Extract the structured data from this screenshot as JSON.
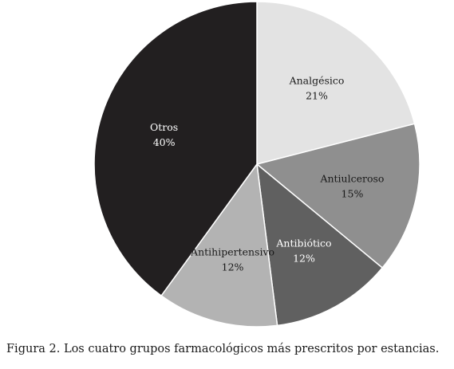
{
  "chart_data": {
    "type": "pie",
    "title": "",
    "caption": "Figura 2. Los cuatro grupos farmacológicos más prescritos por estancias.",
    "slices": [
      {
        "label": "Analgésico",
        "value": 21,
        "display": "21%",
        "color": "#e3e3e3",
        "text_color": "#1a1a1a"
      },
      {
        "label": "Antiulceroso",
        "value": 15,
        "display": "15%",
        "color": "#8f8f8f",
        "text_color": "#1a1a1a"
      },
      {
        "label": "Antibiótico",
        "value": 12,
        "display": "12%",
        "color": "#606060",
        "text_color": "#ffffff"
      },
      {
        "label": "Antihipertensivo",
        "value": 12,
        "display": "12%",
        "color": "#b3b3b3",
        "text_color": "#1a1a1a"
      },
      {
        "label": "Otros",
        "value": 40,
        "display": "40%",
        "color": "#221f20",
        "text_color": "#ffffff"
      }
    ]
  }
}
